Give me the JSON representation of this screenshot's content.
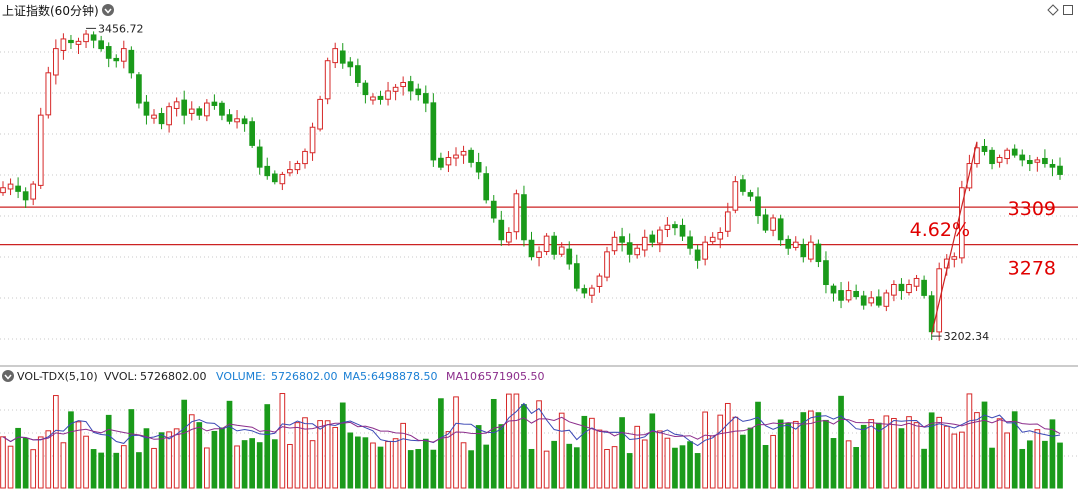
{
  "header": {
    "title": "上证指数(60分钟)",
    "dropdown_icon": "chevron-down-icon",
    "right_icons": [
      "diamond-icon",
      "square-icon"
    ]
  },
  "chart_data": {
    "type": "candlestick",
    "ylim": [
      3195,
      3462
    ],
    "high_label": "3456.72",
    "low_label": "3202.34",
    "hlines": [
      {
        "value": 3309,
        "label": "3309"
      },
      {
        "value": 3278,
        "label": "3278"
      }
    ],
    "rally_label": "4.62%",
    "colors": {
      "up": "#d62828",
      "down": "#1a9a1a",
      "line": "#cc2222",
      "ma5": "#3b48b5",
      "ma10": "#8b2d8b"
    },
    "closes": [
      3325,
      3328,
      3322,
      3315,
      3328,
      3385,
      3420,
      3440,
      3448,
      3445,
      3446,
      3452,
      3447,
      3440,
      3432,
      3430,
      3440,
      3420,
      3395,
      3385,
      3385,
      3378,
      3392,
      3396,
      3385,
      3390,
      3385,
      3395,
      3393,
      3385,
      3380,
      3382,
      3378,
      3360,
      3342,
      3335,
      3330,
      3336,
      3340,
      3345,
      3355,
      3375,
      3398,
      3430,
      3440,
      3428,
      3425,
      3412,
      3402,
      3400,
      3398,
      3405,
      3408,
      3412,
      3405,
      3402,
      3395,
      3348,
      3342,
      3350,
      3352,
      3355,
      3346,
      3338,
      3315,
      3300,
      3282,
      3288,
      3320,
      3282,
      3268,
      3272,
      3285,
      3270,
      3276,
      3262,
      3242,
      3238,
      3242,
      3252,
      3272,
      3284,
      3280,
      3270,
      3275,
      3284,
      3280,
      3290,
      3294,
      3292,
      3285,
      3275,
      3265,
      3280,
      3284,
      3288,
      3305,
      3330,
      3322,
      3318,
      3302,
      3290,
      3300,
      3282,
      3275,
      3280,
      3268,
      3280,
      3264,
      3245,
      3238,
      3232,
      3240,
      3235,
      3228,
      3234,
      3228,
      3238,
      3245,
      3240,
      3245,
      3250,
      3236,
      3206,
      3258,
      3266,
      3268,
      3325,
      3345,
      3358,
      3355,
      3345,
      3350,
      3356,
      3352,
      3348,
      3345,
      3348,
      3345,
      3342,
      3336
    ],
    "volume": {
      "vvol": "5726802.00",
      "volume": "5726802.00",
      "ma5": "6498878.50",
      "ma10": "6571905.50"
    }
  },
  "volume_panel": {
    "indicator": "VOL-TDX(5,10)",
    "vvol_label": "VVOL:",
    "vvol_value": "5726802.00",
    "volume_label": "VOLUME:",
    "volume_value": "5726802.00",
    "ma5_label": "MA5:",
    "ma5_value": "6498878.50",
    "ma10_label": "MA10:",
    "ma10_value": "6571905.50",
    "dropdown_icon": "circle-dot-icon"
  }
}
